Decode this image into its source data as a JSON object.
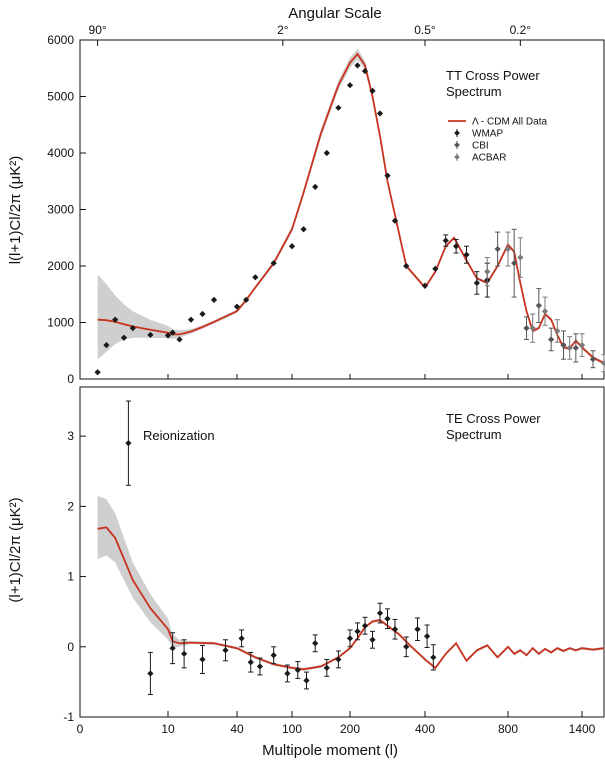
{
  "top_axis": {
    "title": "Angular Scale",
    "tick_labels": [
      "90°",
      "2°",
      "0.5°",
      "0.2°"
    ],
    "tick_l": [
      2,
      90,
      400,
      900
    ]
  },
  "colors": {
    "model": "#c8331f",
    "band": "#cfcfcf",
    "wmap": "#1a1a1a",
    "cbi": "#555555",
    "acbar": "#7a7a7a"
  },
  "chart_data": [
    {
      "type": "scatter",
      "panel": "TT",
      "title": "TT Cross Power Spectrum",
      "title_lines": [
        "TT Cross Power",
        "Spectrum"
      ],
      "ylabel": "l(l+1)Cl/2π (μK²)",
      "ylim": [
        0,
        6000
      ],
      "yticks": [
        0,
        1000,
        2000,
        3000,
        4000,
        5000,
        6000
      ],
      "legend": {
        "position": "right",
        "entries": [
          "Λ - CDM All Data",
          "WMAP",
          "CBI",
          "ACBAR"
        ]
      },
      "model": {
        "name": "Λ - CDM All Data",
        "l": [
          2,
          3,
          4,
          5,
          6,
          8,
          10,
          12,
          15,
          20,
          25,
          30,
          40,
          50,
          60,
          80,
          100,
          120,
          150,
          180,
          200,
          220,
          240,
          260,
          280,
          300,
          350,
          400,
          450,
          500,
          540,
          600,
          650,
          700,
          750,
          800,
          850,
          900,
          950,
          1000,
          1050,
          1100,
          1150,
          1200,
          1250,
          1300,
          1350,
          1400,
          1450,
          1500
        ],
        "value": [
          1050,
          1040,
          1010,
          970,
          930,
          870,
          820,
          790,
          790,
          840,
          920,
          1010,
          1200,
          1400,
          1620,
          2050,
          2650,
          3300,
          4350,
          5200,
          5600,
          5750,
          5550,
          5000,
          4300,
          3500,
          2000,
          1620,
          1900,
          2350,
          2500,
          2100,
          1780,
          1700,
          2000,
          2380,
          2250,
          1700,
          1200,
          850,
          900,
          1150,
          1050,
          780,
          560,
          540,
          680,
          560,
          380,
          280
        ],
        "band_upper": [
          1850,
          1680,
          1480,
          1320,
          1200,
          1050,
          940,
          880,
          860,
          880,
          950,
          1040,
          1230,
          1430,
          1650,
          2090,
          2700,
          3360,
          4420,
          5280,
          5690,
          5840,
          5630,
          5060,
          4350,
          3540,
          2030,
          1650,
          1930,
          2380,
          2530,
          2130,
          1810,
          1730,
          2030,
          2410,
          2280,
          1730,
          1230,
          880,
          930,
          1180,
          1080,
          810,
          590,
          570,
          710,
          590,
          410,
          310
        ],
        "band_lower": [
          350,
          480,
          620,
          700,
          730,
          730,
          720,
          710,
          730,
          800,
          890,
          980,
          1170,
          1370,
          1590,
          2010,
          2600,
          3240,
          4280,
          5120,
          5510,
          5660,
          5470,
          4940,
          4250,
          3460,
          1970,
          1590,
          1870,
          2320,
          2470,
          2070,
          1750,
          1670,
          1970,
          2350,
          2220,
          1670,
          1170,
          820,
          870,
          1120,
          1020,
          750,
          530,
          510,
          650,
          530,
          350,
          250
        ]
      },
      "series": [
        {
          "name": "WMAP",
          "l": [
            2,
            3,
            4,
            5,
            6,
            8,
            10,
            12,
            15,
            20,
            25,
            30,
            40,
            50,
            60,
            80,
            100,
            120,
            140,
            160,
            180,
            200,
            220,
            240,
            260,
            280,
            300,
            320,
            350,
            400,
            450,
            500,
            550,
            600,
            650,
            700
          ],
          "value": [
            120,
            600,
            1050,
            730,
            900,
            780,
            770,
            820,
            700,
            1050,
            1150,
            1400,
            1280,
            1400,
            1800,
            2050,
            2350,
            2650,
            3400,
            4000,
            4800,
            5200,
            5550,
            5450,
            5100,
            4700,
            3600,
            2800,
            2000,
            1650,
            1950,
            2450,
            2350,
            2200,
            1700,
            1750
          ],
          "err": [
            0,
            0,
            0,
            0,
            0,
            0,
            0,
            0,
            0,
            0,
            0,
            0,
            0,
            0,
            0,
            0,
            0,
            0,
            0,
            0,
            0,
            0,
            0,
            0,
            0,
            0,
            0,
            0,
            0,
            0,
            0,
            100,
            120,
            150,
            200,
            300
          ]
        },
        {
          "name": "CBI",
          "l": [
            750,
            850,
            950,
            1050,
            1150,
            1250,
            1350,
            1450
          ],
          "value": [
            2300,
            2050,
            900,
            1300,
            700,
            600,
            550,
            350
          ],
          "err": [
            300,
            600,
            200,
            300,
            200,
            250,
            250,
            150
          ]
        },
        {
          "name": "ACBAR",
          "l": [
            700,
            800,
            900,
            1000,
            1100,
            1200,
            1300,
            1400,
            1500
          ],
          "value": [
            1900,
            2300,
            2150,
            900,
            1200,
            850,
            550,
            600,
            280
          ],
          "err": [
            250,
            300,
            350,
            250,
            250,
            200,
            200,
            200,
            150
          ]
        }
      ]
    },
    {
      "type": "scatter",
      "panel": "TE",
      "title": "TE Cross Power Spectrum",
      "title_lines": [
        "TE Cross Power",
        "Spectrum"
      ],
      "ylabel": "(l+1)Cl/2π (μK²)",
      "ylim": [
        -1,
        3.7
      ],
      "yticks": [
        -1,
        0,
        1,
        2,
        3
      ],
      "xlabel": "Multipole moment (l)",
      "xticks": [
        0,
        10,
        40,
        100,
        200,
        400,
        800,
        1400
      ],
      "annotations": [
        {
          "text": "Reionization",
          "l": 5.5,
          "value": 2.9
        }
      ],
      "model": {
        "l": [
          2,
          3,
          4,
          5,
          6,
          8,
          10,
          12,
          15,
          20,
          30,
          40,
          60,
          80,
          100,
          120,
          150,
          180,
          200,
          220,
          240,
          260,
          280,
          300,
          330,
          360,
          400,
          450,
          500,
          550,
          600,
          650,
          700,
          750,
          800,
          850,
          900,
          950,
          1000,
          1050,
          1100,
          1150,
          1200,
          1250,
          1300,
          1350,
          1400,
          1450,
          1500
        ],
        "value": [
          1.68,
          1.7,
          1.55,
          1.25,
          0.95,
          0.55,
          0.25,
          0.08,
          0.05,
          0.06,
          0.05,
          -0.02,
          -0.15,
          -0.25,
          -0.3,
          -0.32,
          -0.28,
          -0.15,
          -0.02,
          0.12,
          0.28,
          0.36,
          0.38,
          0.3,
          0.18,
          0.02,
          -0.18,
          -0.3,
          -0.1,
          0.05,
          -0.2,
          -0.05,
          0.02,
          -0.15,
          0.0,
          -0.1,
          -0.05,
          -0.12,
          -0.02,
          -0.1,
          -0.03,
          -0.08,
          -0.02,
          -0.06,
          -0.02,
          -0.05,
          -0.02,
          -0.04,
          -0.02
        ],
        "band_upper": [
          2.15,
          2.1,
          1.9,
          1.55,
          1.2,
          0.75,
          0.4,
          0.18,
          0.1,
          0.08,
          0.07,
          0.0,
          -0.13,
          -0.23,
          -0.28,
          -0.3,
          -0.26,
          -0.13,
          0.0,
          0.14,
          0.3,
          0.38,
          0.4,
          0.32,
          0.2,
          0.04,
          -0.16,
          -0.28,
          -0.08,
          0.07,
          -0.18,
          -0.03,
          0.04,
          -0.13,
          0.02,
          -0.08,
          -0.03,
          -0.1,
          0.0,
          -0.08,
          -0.01,
          -0.06,
          0.0,
          -0.04,
          0.0,
          -0.03,
          0.0,
          -0.02,
          0.0
        ],
        "band_lower": [
          1.25,
          1.3,
          1.2,
          0.95,
          0.7,
          0.35,
          0.1,
          -0.02,
          0.0,
          0.04,
          0.03,
          -0.04,
          -0.17,
          -0.27,
          -0.32,
          -0.34,
          -0.3,
          -0.17,
          -0.04,
          0.1,
          0.26,
          0.34,
          0.36,
          0.28,
          0.16,
          0.0,
          -0.2,
          -0.32,
          -0.12,
          0.03,
          -0.22,
          -0.07,
          0.0,
          -0.17,
          -0.02,
          -0.12,
          -0.07,
          -0.14,
          -0.04,
          -0.12,
          -0.05,
          -0.1,
          -0.04,
          -0.08,
          -0.04,
          -0.07,
          -0.04,
          -0.06,
          -0.04
        ]
      },
      "series": [
        {
          "name": "WMAP",
          "l": [
            5.5,
            8,
            12,
            17,
            25,
            35,
            45,
            55,
            65,
            80,
            95,
            110,
            125,
            140,
            160,
            180,
            200,
            220,
            240,
            260,
            280,
            300,
            320,
            350,
            380,
            410,
            440
          ],
          "value": [
            2.9,
            -0.38,
            -0.02,
            -0.1,
            -0.18,
            -0.05,
            0.12,
            -0.22,
            -0.28,
            -0.12,
            -0.38,
            -0.33,
            -0.48,
            0.05,
            -0.3,
            -0.18,
            0.12,
            0.22,
            0.3,
            0.1,
            0.48,
            0.4,
            0.25,
            0.0,
            0.25,
            0.15,
            -0.15
          ],
          "err": [
            0.6,
            0.3,
            0.22,
            0.2,
            0.2,
            0.15,
            0.12,
            0.14,
            0.12,
            0.12,
            0.12,
            0.12,
            0.12,
            0.12,
            0.12,
            0.12,
            0.12,
            0.12,
            0.12,
            0.12,
            0.14,
            0.14,
            0.14,
            0.14,
            0.16,
            0.16,
            0.18
          ]
        }
      ]
    }
  ]
}
